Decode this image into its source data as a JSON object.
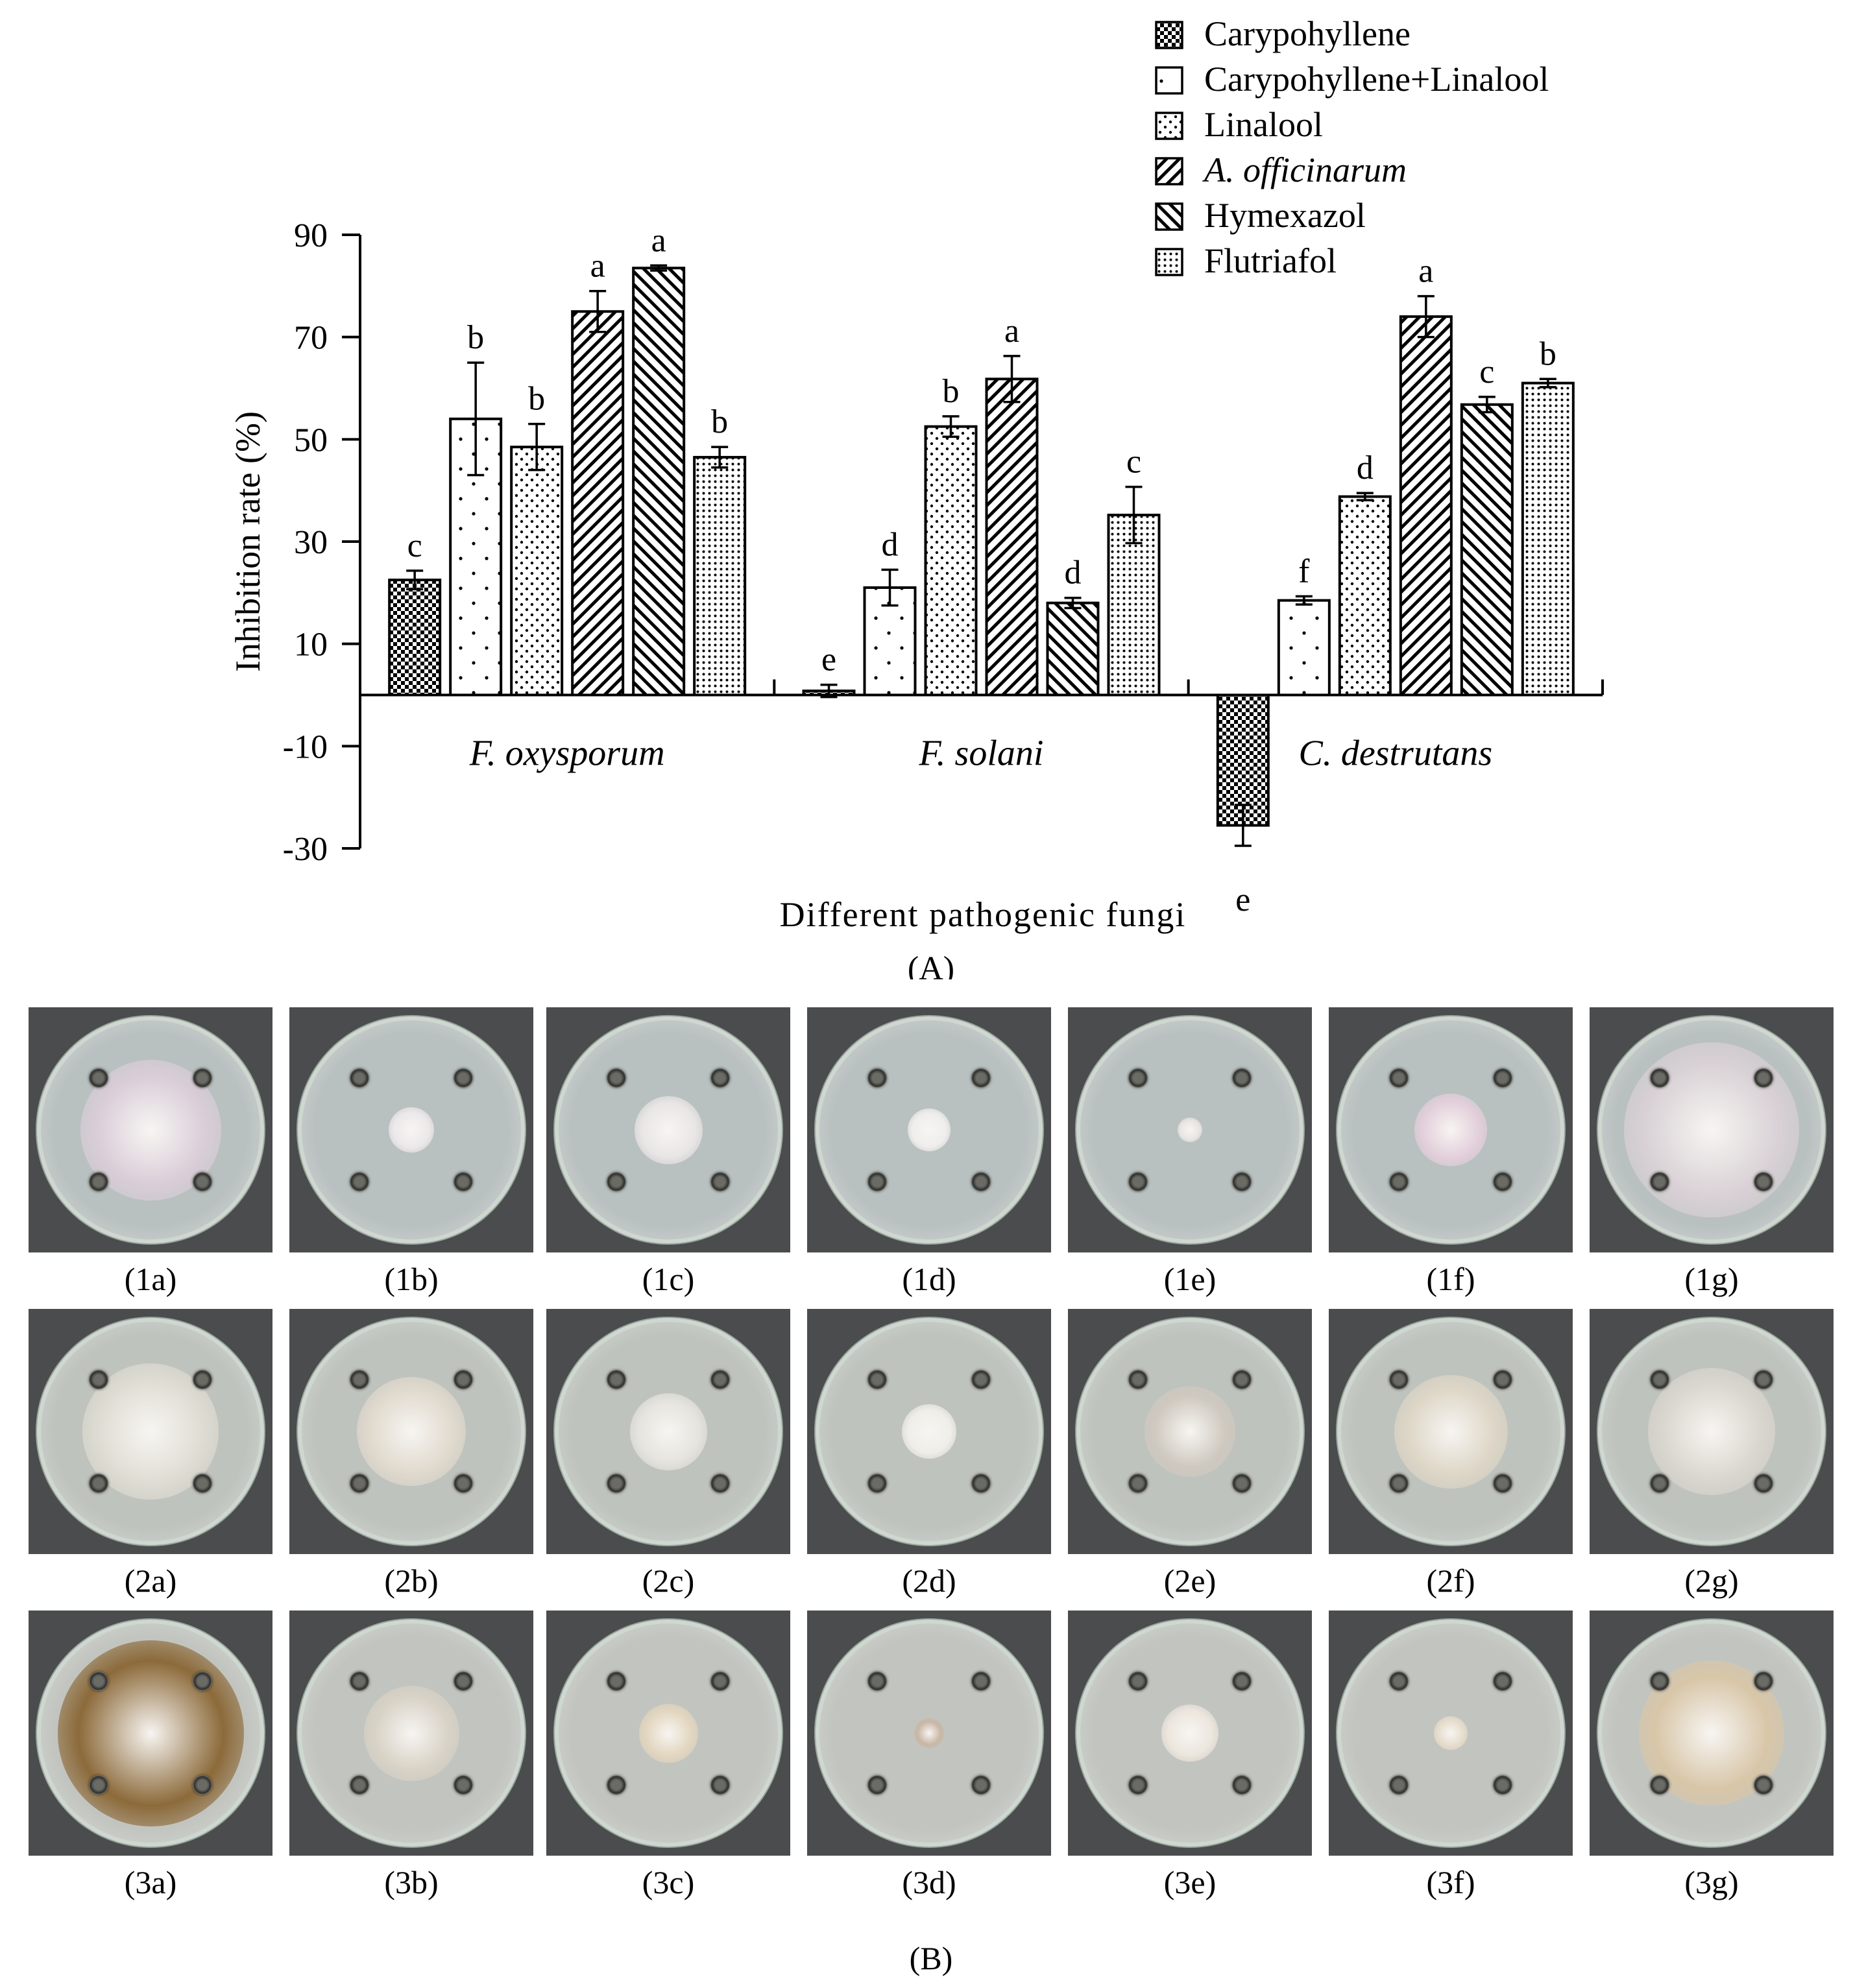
{
  "chart_data": {
    "type": "bar",
    "ylabel": "Inhibition rate (%)",
    "xlabel": "Different pathogenic fungi",
    "ylim": [
      -30,
      90
    ],
    "yticks": [
      -30,
      -10,
      10,
      30,
      50,
      70,
      90
    ],
    "ytick_labels": [
      "-30",
      "-10",
      "10",
      "30",
      "50",
      "70",
      "90"
    ],
    "categories": [
      "F. oxysporum",
      "F. solani",
      "C. destrutans"
    ],
    "legend_position": "top-right",
    "series": [
      {
        "name": "Carypohyllene",
        "pattern": "checker",
        "values": [
          22.5,
          0.8,
          -25.5
        ],
        "errors": [
          1.8,
          1.2,
          4.0
        ],
        "letters": [
          "c",
          "e",
          "e"
        ]
      },
      {
        "name": "Carypohyllene+Linalool",
        "pattern": "sparse-dots",
        "values": [
          54,
          21,
          18.5
        ],
        "errors": [
          11,
          3.5,
          0.8
        ],
        "letters": [
          "b",
          "d",
          "f"
        ]
      },
      {
        "name": "Linalool",
        "pattern": "dots",
        "values": [
          48.5,
          52.5,
          38.8
        ],
        "errors": [
          4.5,
          2,
          0.7
        ],
        "letters": [
          "b",
          "b",
          "d"
        ]
      },
      {
        "name": "A. officinarum",
        "pattern": "diagonal-right",
        "italic": true,
        "values": [
          75,
          61.8,
          74
        ],
        "errors": [
          4,
          4.5,
          4
        ],
        "letters": [
          "a",
          "a",
          "a"
        ]
      },
      {
        "name": "Hymexazol",
        "pattern": "diagonal-left",
        "values": [
          83.5,
          18,
          56.8
        ],
        "errors": [
          0.5,
          1,
          1.5
        ],
        "letters": [
          "a",
          "d",
          "c"
        ]
      },
      {
        "name": " Flutriafol",
        "pattern": "dense-dots",
        "values": [
          46.5,
          35.2,
          61
        ],
        "errors": [
          2,
          5.5,
          0.8
        ],
        "letters": [
          "b",
          "c",
          "b"
        ]
      }
    ],
    "panel_label": "(A)"
  },
  "photos": {
    "panel_label": "(B)",
    "rows": [
      {
        "labels": [
          "(1a)",
          "(1b)",
          "(1c)",
          "(1d)",
          "(1e)",
          "(1f)",
          "(1g)"
        ],
        "colony_sizes": [
          0.62,
          0.2,
          0.3,
          0.19,
          0.11,
          0.32,
          0.77
        ]
      },
      {
        "labels": [
          "(2a)",
          "(2b)",
          "(2c)",
          "(2d)",
          "(2e)",
          "(2f)",
          "(2g)"
        ],
        "colony_sizes": [
          0.6,
          0.48,
          0.34,
          0.24,
          0.4,
          0.5,
          0.56
        ]
      },
      {
        "labels": [
          "(3a)",
          "(3b)",
          "(3c)",
          "(3d)",
          "(3e)",
          "(3f)",
          "(3g)"
        ],
        "colony_sizes": [
          0.82,
          0.42,
          0.26,
          0.13,
          0.25,
          0.15,
          0.64
        ]
      }
    ]
  }
}
